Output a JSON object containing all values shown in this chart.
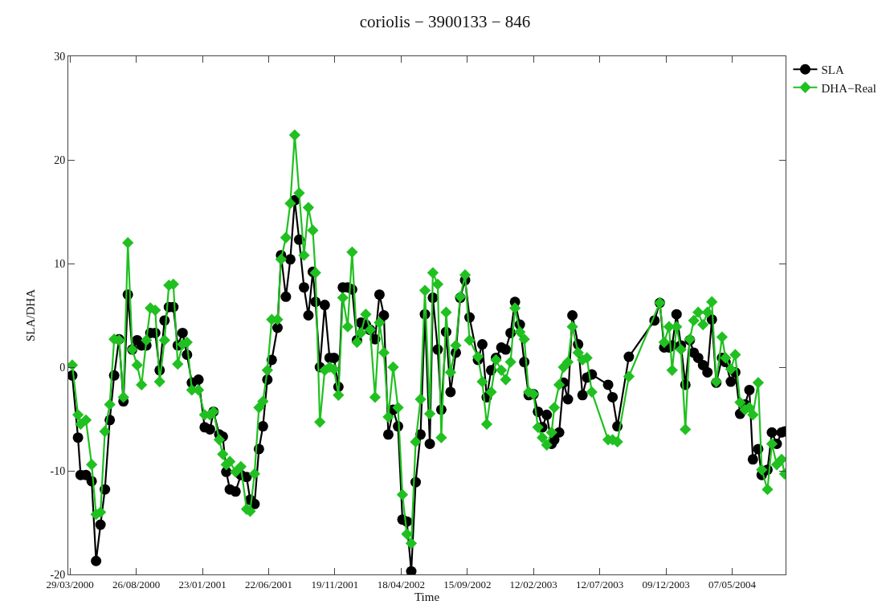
{
  "chart_data": {
    "type": "line",
    "title": "coriolis − 3900133 − 846",
    "xlabel": "Time",
    "ylabel": "SLA/DHA",
    "x": [
      "2000-04-03",
      "2000-04-16",
      "2000-04-22",
      "2000-05-04",
      "2000-05-17",
      "2000-05-27",
      "2000-06-06",
      "2000-06-16",
      "2000-06-27",
      "2000-07-07",
      "2000-07-18",
      "2000-07-28",
      "2000-08-07",
      "2000-08-17",
      "2000-08-28",
      "2000-09-07",
      "2000-09-18",
      "2000-09-27",
      "2000-10-08",
      "2000-10-18",
      "2000-10-29",
      "2000-11-08",
      "2000-11-18",
      "2000-11-28",
      "2000-12-09",
      "2000-12-19",
      "2000-12-30",
      "2001-01-14",
      "2001-01-28",
      "2001-02-09",
      "2001-02-17",
      "2001-03-02",
      "2001-03-10",
      "2001-03-18",
      "2001-03-26",
      "2001-04-08",
      "2001-04-20",
      "2001-05-03",
      "2001-05-11",
      "2001-05-21",
      "2001-05-31",
      "2001-06-09",
      "2001-06-19",
      "2001-06-29",
      "2001-07-12",
      "2001-07-20",
      "2001-07-31",
      "2001-08-10",
      "2001-08-20",
      "2001-08-30",
      "2001-09-10",
      "2001-09-20",
      "2001-09-30",
      "2001-10-06",
      "2001-10-16",
      "2001-10-27",
      "2001-11-07",
      "2001-11-17",
      "2001-11-27",
      "2001-12-07",
      "2001-12-18",
      "2001-12-28",
      "2002-01-08",
      "2002-01-17",
      "2002-01-28",
      "2002-02-07",
      "2002-02-18",
      "2002-02-28",
      "2002-03-10",
      "2002-03-20",
      "2002-03-31",
      "2002-04-11",
      "2002-04-21",
      "2002-05-01",
      "2002-05-11",
      "2002-05-21",
      "2002-06-01",
      "2002-06-11",
      "2002-06-22",
      "2002-06-29",
      "2002-07-10",
      "2002-07-18",
      "2002-07-29",
      "2002-08-08",
      "2002-08-20",
      "2002-08-30",
      "2002-09-10",
      "2002-09-20",
      "2002-10-09",
      "2002-10-19",
      "2002-10-29",
      "2002-11-08",
      "2002-11-19",
      "2002-12-01",
      "2002-12-11",
      "2002-12-22",
      "2003-01-01",
      "2003-01-12",
      "2003-01-22",
      "2003-02-01",
      "2003-02-12",
      "2003-02-22",
      "2003-03-04",
      "2003-03-14",
      "2003-03-25",
      "2003-03-31",
      "2003-04-11",
      "2003-04-21",
      "2003-05-01",
      "2003-05-11",
      "2003-05-24",
      "2003-06-03",
      "2003-06-13",
      "2003-06-24",
      "2003-07-31",
      "2003-08-10",
      "2003-08-21",
      "2003-09-16",
      "2003-11-13",
      "2003-11-25",
      "2003-12-05",
      "2003-12-16",
      "2003-12-23",
      "2004-01-02",
      "2004-01-12",
      "2004-01-22",
      "2004-02-01",
      "2004-02-10",
      "2004-02-20",
      "2004-03-02",
      "2004-03-12",
      "2004-03-22",
      "2004-04-01",
      "2004-04-14",
      "2004-04-22",
      "2004-05-04",
      "2004-05-14",
      "2004-05-25",
      "2004-06-05",
      "2004-06-15",
      "2004-06-23",
      "2004-07-05",
      "2004-07-13",
      "2004-07-26",
      "2004-08-05",
      "2004-08-16",
      "2004-08-27",
      "2004-09-03"
    ],
    "series": [
      {
        "name": "SLA",
        "color": "#000000",
        "marker": "circle",
        "values": [
          -0.8,
          -6.8,
          -10.4,
          -10.4,
          -11.0,
          -18.7,
          -15.2,
          -11.8,
          -5.1,
          -0.8,
          2.7,
          -3.3,
          7.0,
          1.7,
          2.6,
          2.1,
          2.1,
          3.3,
          3.3,
          -0.3,
          4.5,
          5.8,
          5.8,
          2.1,
          3.3,
          1.2,
          -1.5,
          -1.2,
          -5.8,
          -6.0,
          -4.3,
          -6.5,
          -6.7,
          -10.1,
          -11.8,
          -12.0,
          -10.4,
          -10.6,
          -12.8,
          -13.2,
          -7.9,
          -5.7,
          -1.2,
          0.7,
          3.8,
          10.8,
          6.8,
          10.4,
          16.1,
          12.3,
          7.7,
          5.0,
          9.2,
          6.3,
          0.0,
          6.0,
          0.9,
          0.9,
          -1.9,
          7.7,
          7.7,
          7.5,
          2.6,
          4.3,
          4.1,
          3.6,
          2.7,
          7.0,
          5.0,
          -6.5,
          -4.1,
          -5.7,
          -14.7,
          -14.9,
          -19.7,
          -11.1,
          -6.5,
          5.1,
          -7.4,
          6.7,
          1.7,
          -4.1,
          3.4,
          -2.4,
          1.4,
          6.7,
          8.4,
          4.8,
          0.7,
          2.2,
          -2.9,
          -0.3,
          0.9,
          1.9,
          1.7,
          3.3,
          6.3,
          4.1,
          0.5,
          -2.7,
          -2.6,
          -4.3,
          -5.8,
          -4.6,
          -7.4,
          -7.0,
          -6.3,
          -1.5,
          -3.1,
          5.0,
          2.2,
          -2.7,
          -1.0,
          -0.7,
          -1.7,
          -2.9,
          -5.7,
          1.0,
          4.5,
          6.2,
          1.9,
          1.9,
          2.1,
          5.1,
          2.1,
          -1.7,
          2.6,
          1.4,
          0.9,
          0.2,
          -0.5,
          4.6,
          -1.5,
          0.9,
          0.5,
          -1.4,
          -0.5,
          -4.5,
          -3.6,
          -2.2,
          -8.9,
          -7.9,
          -10.4,
          -9.9,
          -6.3,
          -7.4,
          -6.3,
          -6.2
        ]
      },
      {
        "name": "DHA−Real",
        "color": "#20c020",
        "marker": "diamond",
        "values": [
          0.2,
          -4.6,
          -5.5,
          -5.1,
          -9.4,
          -14.2,
          -14.0,
          -6.2,
          -3.6,
          2.7,
          2.6,
          -2.9,
          12.0,
          1.7,
          0.2,
          -1.7,
          2.6,
          5.7,
          5.5,
          -1.4,
          2.6,
          7.9,
          8.0,
          0.3,
          2.2,
          2.4,
          -2.2,
          -2.2,
          -4.6,
          -4.6,
          -4.3,
          -7.0,
          -8.4,
          -9.4,
          -9.1,
          -10.1,
          -9.6,
          -13.7,
          -13.9,
          -10.3,
          -3.9,
          -3.3,
          -0.3,
          4.6,
          4.6,
          10.4,
          12.5,
          15.8,
          22.4,
          16.8,
          10.8,
          15.4,
          13.2,
          9.1,
          -5.3,
          -0.3,
          0.0,
          -0.2,
          -2.7,
          6.7,
          3.9,
          11.1,
          2.4,
          3.3,
          5.1,
          3.6,
          -2.9,
          4.3,
          1.4,
          -4.8,
          0.0,
          -3.9,
          -12.3,
          -16.1,
          -17.0,
          -7.2,
          -3.1,
          7.4,
          -4.5,
          9.1,
          8.0,
          -6.8,
          5.3,
          -0.5,
          2.1,
          6.8,
          8.9,
          2.6,
          1.0,
          -1.4,
          -5.5,
          -2.4,
          0.7,
          -0.3,
          -1.2,
          0.5,
          5.7,
          3.4,
          2.7,
          -2.4,
          -2.6,
          -5.8,
          -6.8,
          -7.5,
          -6.3,
          -3.9,
          -1.7,
          0.0,
          0.5,
          3.9,
          1.4,
          0.7,
          0.9,
          -2.4,
          -7.0,
          -7.0,
          -7.2,
          -0.9,
          null,
          6.2,
          2.4,
          3.9,
          -0.3,
          3.9,
          1.7,
          -6.0,
          2.7,
          4.5,
          5.3,
          4.1,
          5.3,
          6.3,
          -1.4,
          2.9,
          0.9,
          -0.2,
          1.2,
          -3.4,
          -4.1,
          -3.9,
          -4.6,
          -1.5,
          -9.9,
          -11.8,
          -7.4,
          -9.4,
          -8.9,
          -10.3
        ]
      }
    ],
    "xlim": [
      "2000-03-25",
      "2004-09-05"
    ],
    "xticks": [
      {
        "value": "2000-03-29",
        "label": "29/03/2000"
      },
      {
        "value": "2000-08-26",
        "label": "26/08/2000"
      },
      {
        "value": "2001-01-23",
        "label": "23/01/2001"
      },
      {
        "value": "2001-06-22",
        "label": "22/06/2001"
      },
      {
        "value": "2001-11-19",
        "label": "19/11/2001"
      },
      {
        "value": "2002-04-18",
        "label": "18/04/2002"
      },
      {
        "value": "2002-09-15",
        "label": "15/09/2002"
      },
      {
        "value": "2003-02-12",
        "label": "12/02/2003"
      },
      {
        "value": "2003-07-12",
        "label": "12/07/2003"
      },
      {
        "value": "2003-12-09",
        "label": "09/12/2003"
      },
      {
        "value": "2004-05-07",
        "label": "07/05/2004"
      }
    ],
    "ylim": [
      -20,
      30
    ],
    "yticks": [
      -20,
      -10,
      0,
      10,
      20,
      30
    ],
    "legend": "top right",
    "line_style": "solid"
  }
}
